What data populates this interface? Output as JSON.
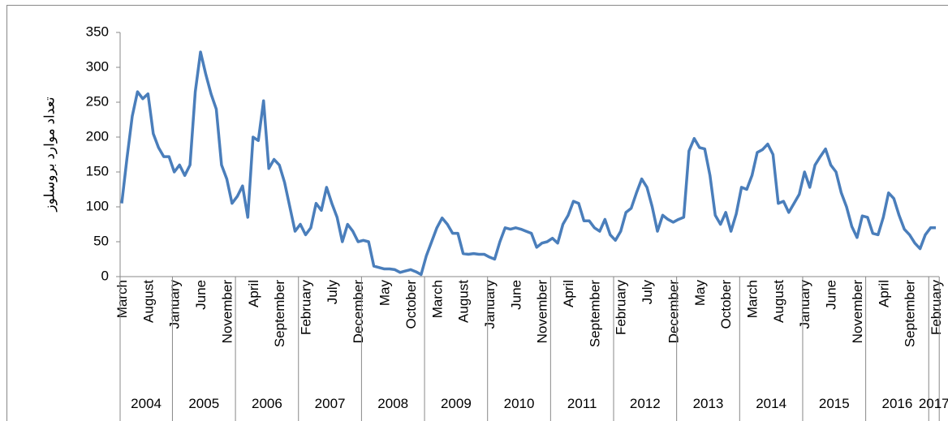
{
  "chart_data": {
    "type": "line",
    "y_label": "تعداد موارد بروسلوز",
    "color": "#4a7ebb",
    "ylim": [
      0,
      350
    ],
    "yticks": [
      0,
      50,
      100,
      150,
      200,
      250,
      300,
      350
    ],
    "categories": [
      "March",
      null,
      null,
      null,
      null,
      "August",
      null,
      null,
      null,
      null,
      "January",
      null,
      null,
      null,
      null,
      "June",
      null,
      null,
      null,
      null,
      "November",
      null,
      null,
      null,
      null,
      "April",
      null,
      null,
      null,
      null,
      "September",
      null,
      null,
      null,
      null,
      "February",
      null,
      null,
      null,
      null,
      "July",
      null,
      null,
      null,
      null,
      "December",
      null,
      null,
      null,
      null,
      "May",
      null,
      null,
      null,
      null,
      "October",
      null,
      null,
      null,
      null,
      "March",
      null,
      null,
      null,
      null,
      "August",
      null,
      null,
      null,
      null,
      "January",
      null,
      null,
      null,
      null,
      "June",
      null,
      null,
      null,
      null,
      "November",
      null,
      null,
      null,
      null,
      "April",
      null,
      null,
      null,
      null,
      "September",
      null,
      null,
      null,
      null,
      "February",
      null,
      null,
      null,
      null,
      "July",
      null,
      null,
      null,
      null,
      "December",
      null,
      null,
      null,
      null,
      "May",
      null,
      null,
      null,
      null,
      "October",
      null,
      null,
      null,
      null,
      "March",
      null,
      null,
      null,
      null,
      "August",
      null,
      null,
      null,
      null,
      "January",
      null,
      null,
      null,
      null,
      "June",
      null,
      null,
      null,
      null,
      "November",
      null,
      null,
      null,
      null,
      "April",
      null,
      null,
      null,
      null,
      "September",
      null,
      null,
      null,
      null,
      "February"
    ],
    "groups": [
      {
        "label": "2004",
        "months": 10
      },
      {
        "label": "2005",
        "months": 12
      },
      {
        "label": "2006",
        "months": 12
      },
      {
        "label": "2007",
        "months": 12
      },
      {
        "label": "2008",
        "months": 12
      },
      {
        "label": "2009",
        "months": 12
      },
      {
        "label": "2010",
        "months": 12
      },
      {
        "label": "2011",
        "months": 12
      },
      {
        "label": "2012",
        "months": 12
      },
      {
        "label": "2013",
        "months": 12
      },
      {
        "label": "2014",
        "months": 12
      },
      {
        "label": "2015",
        "months": 12
      },
      {
        "label": "2016",
        "months": 12
      },
      {
        "label": "2017",
        "months": 2
      }
    ],
    "values": [
      105,
      170,
      230,
      265,
      255,
      262,
      205,
      185,
      172,
      172,
      150,
      160,
      145,
      160,
      265,
      322,
      290,
      262,
      240,
      160,
      140,
      105,
      115,
      130,
      85,
      200,
      195,
      252,
      155,
      168,
      160,
      135,
      100,
      65,
      75,
      60,
      70,
      105,
      95,
      128,
      105,
      85,
      50,
      75,
      65,
      50,
      52,
      50,
      15,
      13,
      11,
      11,
      10,
      6,
      8,
      10,
      7,
      3,
      30,
      50,
      70,
      84,
      75,
      62,
      62,
      33,
      32,
      33,
      32,
      32,
      28,
      25,
      50,
      70,
      68,
      70,
      68,
      65,
      62,
      42,
      48,
      50,
      55,
      48,
      75,
      88,
      108,
      105,
      80,
      80,
      70,
      65,
      82,
      60,
      52,
      65,
      92,
      98,
      120,
      140,
      128,
      100,
      65,
      88,
      82,
      78,
      82,
      85,
      180,
      198,
      185,
      183,
      145,
      88,
      75,
      92,
      65,
      90,
      128,
      125,
      145,
      178,
      182,
      190,
      175,
      105,
      108,
      92,
      105,
      118,
      150,
      128,
      160,
      172,
      183,
      160,
      150,
      120,
      100,
      72,
      56,
      87,
      85,
      62,
      60,
      85,
      120,
      112,
      88,
      68,
      60,
      48,
      40,
      60,
      70,
      70
    ]
  }
}
